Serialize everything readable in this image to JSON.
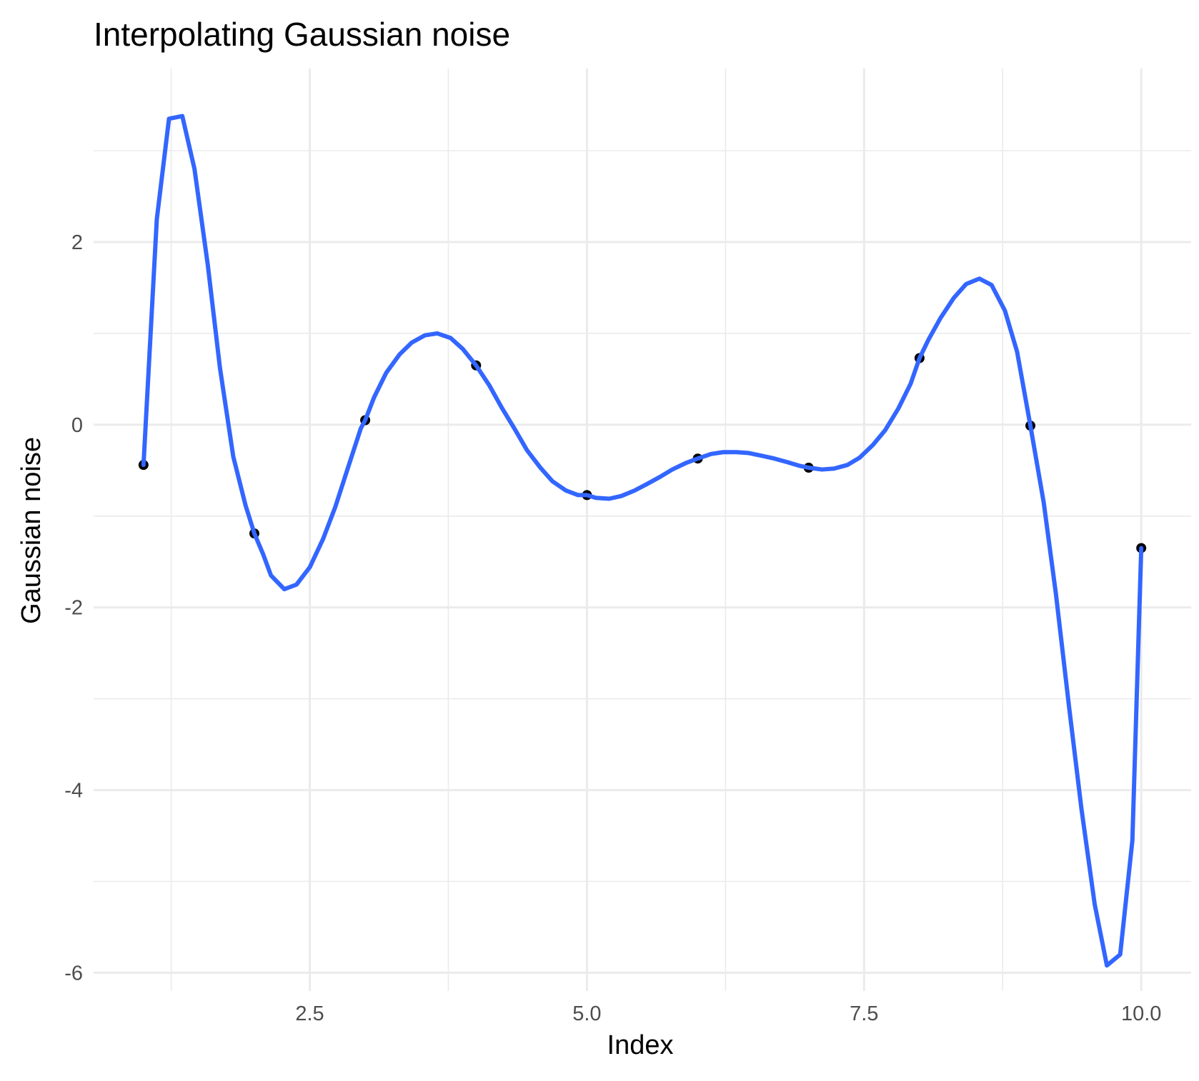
{
  "chart_data": {
    "type": "line",
    "title": "Interpolating Gaussian noise",
    "xlabel": "Index",
    "ylabel": "Gaussian noise",
    "xlim": [
      0.55,
      10.45
    ],
    "ylim": [
      -6.2,
      3.9
    ],
    "x_ticks": [
      2.5,
      5.0,
      7.5,
      10.0
    ],
    "x_tick_labels": [
      "2.5",
      "5.0",
      "7.5",
      "10.0"
    ],
    "x_minor_ticks": [
      1.25,
      3.75,
      6.25,
      8.75
    ],
    "y_ticks": [
      -6,
      -4,
      -2,
      0,
      2
    ],
    "y_tick_labels": [
      "-6",
      "-4",
      "-2",
      "0",
      "2"
    ],
    "y_minor_ticks": [
      -5,
      -3,
      -1,
      1,
      3
    ],
    "grid": true,
    "legend": "none",
    "series": [
      {
        "kind": "points",
        "color": "#000000",
        "points": [
          {
            "x": 1,
            "y": -0.44
          },
          {
            "x": 2,
            "y": -1.19
          },
          {
            "x": 3,
            "y": 0.05
          },
          {
            "x": 4,
            "y": 0.65
          },
          {
            "x": 5,
            "y": -0.77
          },
          {
            "x": 6,
            "y": -0.37
          },
          {
            "x": 7,
            "y": -0.47
          },
          {
            "x": 8,
            "y": 0.73
          },
          {
            "x": 9,
            "y": -0.01
          },
          {
            "x": 10,
            "y": -1.35
          }
        ]
      },
      {
        "kind": "line",
        "color": "#3366ff",
        "points": [
          {
            "x": 1.0,
            "y": -0.44
          },
          {
            "x": 1.12,
            "y": 2.25
          },
          {
            "x": 1.23,
            "y": 3.35
          },
          {
            "x": 1.35,
            "y": 3.38
          },
          {
            "x": 1.46,
            "y": 2.8
          },
          {
            "x": 1.58,
            "y": 1.75
          },
          {
            "x": 1.69,
            "y": 0.62
          },
          {
            "x": 1.81,
            "y": -0.35
          },
          {
            "x": 1.92,
            "y": -0.88
          },
          {
            "x": 2.0,
            "y": -1.19
          },
          {
            "x": 2.08,
            "y": -1.42
          },
          {
            "x": 2.15,
            "y": -1.65
          },
          {
            "x": 2.27,
            "y": -1.8
          },
          {
            "x": 2.38,
            "y": -1.75
          },
          {
            "x": 2.5,
            "y": -1.56
          },
          {
            "x": 2.62,
            "y": -1.25
          },
          {
            "x": 2.73,
            "y": -0.9
          },
          {
            "x": 2.85,
            "y": -0.45
          },
          {
            "x": 2.96,
            "y": -0.04
          },
          {
            "x": 3.0,
            "y": 0.05
          },
          {
            "x": 3.08,
            "y": 0.3
          },
          {
            "x": 3.19,
            "y": 0.57
          },
          {
            "x": 3.31,
            "y": 0.77
          },
          {
            "x": 3.42,
            "y": 0.9
          },
          {
            "x": 3.54,
            "y": 0.98
          },
          {
            "x": 3.65,
            "y": 1.0
          },
          {
            "x": 3.77,
            "y": 0.95
          },
          {
            "x": 3.88,
            "y": 0.83
          },
          {
            "x": 4.0,
            "y": 0.65
          },
          {
            "x": 4.12,
            "y": 0.43
          },
          {
            "x": 4.23,
            "y": 0.19
          },
          {
            "x": 4.35,
            "y": -0.05
          },
          {
            "x": 4.46,
            "y": -0.28
          },
          {
            "x": 4.58,
            "y": -0.47
          },
          {
            "x": 4.69,
            "y": -0.62
          },
          {
            "x": 4.81,
            "y": -0.72
          },
          {
            "x": 4.92,
            "y": -0.77
          },
          {
            "x": 5.0,
            "y": -0.77
          },
          {
            "x": 5.08,
            "y": -0.8
          },
          {
            "x": 5.2,
            "y": -0.81
          },
          {
            "x": 5.31,
            "y": -0.78
          },
          {
            "x": 5.43,
            "y": -0.72
          },
          {
            "x": 5.54,
            "y": -0.65
          },
          {
            "x": 5.66,
            "y": -0.57
          },
          {
            "x": 5.77,
            "y": -0.49
          },
          {
            "x": 5.89,
            "y": -0.42
          },
          {
            "x": 6.0,
            "y": -0.37
          },
          {
            "x": 6.12,
            "y": -0.32
          },
          {
            "x": 6.23,
            "y": -0.3
          },
          {
            "x": 6.35,
            "y": -0.3
          },
          {
            "x": 6.46,
            "y": -0.31
          },
          {
            "x": 6.58,
            "y": -0.34
          },
          {
            "x": 6.69,
            "y": -0.37
          },
          {
            "x": 6.81,
            "y": -0.41
          },
          {
            "x": 6.92,
            "y": -0.45
          },
          {
            "x": 7.0,
            "y": -0.47
          },
          {
            "x": 7.12,
            "y": -0.49
          },
          {
            "x": 7.23,
            "y": -0.48
          },
          {
            "x": 7.35,
            "y": -0.44
          },
          {
            "x": 7.46,
            "y": -0.36
          },
          {
            "x": 7.58,
            "y": -0.22
          },
          {
            "x": 7.69,
            "y": -0.06
          },
          {
            "x": 7.81,
            "y": 0.18
          },
          {
            "x": 7.92,
            "y": 0.45
          },
          {
            "x": 8.0,
            "y": 0.73
          },
          {
            "x": 8.08,
            "y": 0.93
          },
          {
            "x": 8.19,
            "y": 1.17
          },
          {
            "x": 8.31,
            "y": 1.39
          },
          {
            "x": 8.42,
            "y": 1.54
          },
          {
            "x": 8.54,
            "y": 1.6
          },
          {
            "x": 8.65,
            "y": 1.53
          },
          {
            "x": 8.77,
            "y": 1.25
          },
          {
            "x": 8.88,
            "y": 0.8
          },
          {
            "x": 9.0,
            "y": -0.01
          },
          {
            "x": 9.12,
            "y": -0.85
          },
          {
            "x": 9.23,
            "y": -1.85
          },
          {
            "x": 9.35,
            "y": -3.1
          },
          {
            "x": 9.46,
            "y": -4.2
          },
          {
            "x": 9.58,
            "y": -5.25
          },
          {
            "x": 9.69,
            "y": -5.92
          },
          {
            "x": 9.81,
            "y": -5.8
          },
          {
            "x": 9.92,
            "y": -4.55
          },
          {
            "x": 10.0,
            "y": -1.35
          }
        ]
      }
    ]
  }
}
